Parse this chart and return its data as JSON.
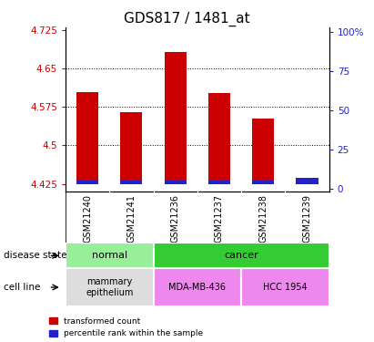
{
  "title": "GDS817 / 1481_at",
  "samples": [
    "GSM21240",
    "GSM21241",
    "GSM21236",
    "GSM21237",
    "GSM21238",
    "GSM21239"
  ],
  "red_values": [
    4.604,
    4.565,
    4.682,
    4.602,
    4.553,
    4.433
  ],
  "blue_heights": [
    0.007,
    0.007,
    0.007,
    0.007,
    0.007,
    0.012
  ],
  "bar_bottom": 4.425,
  "ylim_left": [
    4.41,
    4.73
  ],
  "ylim_right": [
    -2,
    103
  ],
  "yticks_left": [
    4.425,
    4.5,
    4.575,
    4.65,
    4.725
  ],
  "yticks_right": [
    0,
    25,
    50,
    75,
    100
  ],
  "ytick_labels_left": [
    "4.425",
    "4.5",
    "4.575",
    "4.65",
    "4.725"
  ],
  "ytick_labels_right": [
    "0",
    "25",
    "50",
    "75",
    "100%"
  ],
  "red_color": "#cc0000",
  "blue_color": "#2222cc",
  "title_fontsize": 11,
  "bar_width": 0.5,
  "disease_colors_normal": "#99ee99",
  "disease_colors_cancer": "#33cc33",
  "cell_color_mammary": "#dddddd",
  "cell_color_mda": "#ee88ee",
  "cell_color_hcc": "#ee88ee",
  "bg_color": "#ffffff",
  "plot_bg": "#ffffff",
  "tick_area_bg": "#cccccc"
}
